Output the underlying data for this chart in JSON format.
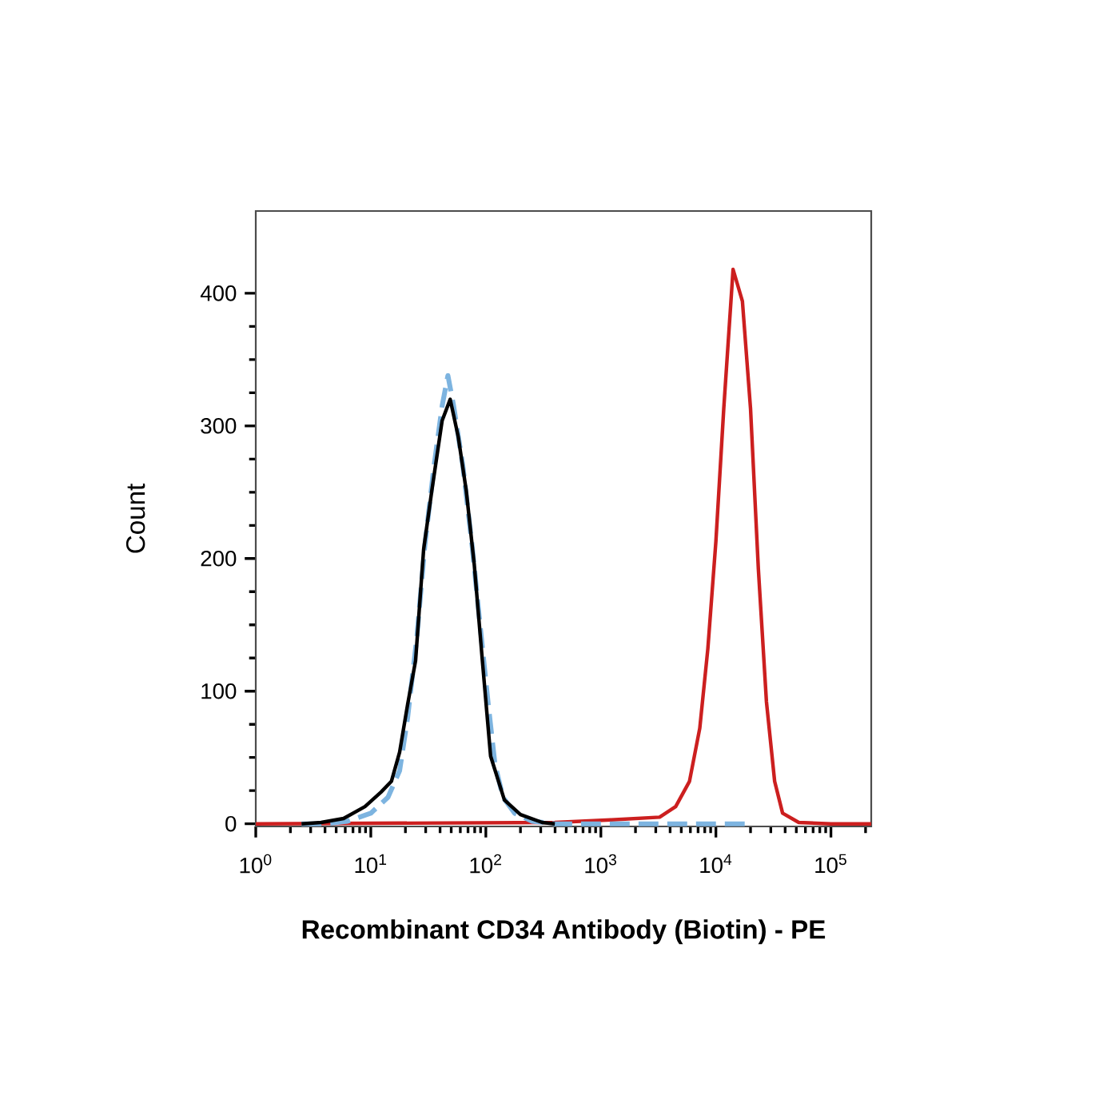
{
  "chart_data": {
    "type": "line",
    "xlabel": "Recombinant CD34 Antibody (Biotin) - PE",
    "ylabel": "Count",
    "log": "x",
    "xlim": [
      1,
      224000
    ],
    "ylim": [
      -2,
      462
    ],
    "xticks": [
      {
        "value": 1,
        "label": "10$^{0}$"
      },
      {
        "value": 10,
        "label": "10$^{1}$"
      },
      {
        "value": 100,
        "label": "10$^{2}$"
      },
      {
        "value": 1000,
        "label": "10$^{3}$"
      },
      {
        "value": 10000,
        "label": "10$^{4}$"
      },
      {
        "value": 100000,
        "label": "10$^{5}$"
      }
    ],
    "yticks": [
      0,
      100,
      200,
      300,
      400
    ],
    "grid": false,
    "marker": "none",
    "series": [
      {
        "color": "#cc1f1f",
        "line_style": "solid",
        "x": [
          1,
          398,
          1230,
          3240,
          4470,
          5890,
          7240,
          8510,
          10000,
          11700,
          14100,
          17000,
          20000,
          23400,
          27500,
          32400,
          38000,
          52500,
          100000,
          224000
        ],
        "values": [
          0,
          1,
          3,
          5,
          13,
          32,
          72,
          132,
          213,
          313,
          418,
          394,
          313,
          192,
          92,
          32,
          8,
          1,
          0,
          0
        ]
      },
      {
        "color": "#7db4e0",
        "line_style": "dashed",
        "x": [
          2.5,
          4,
          6.3,
          10,
          14.1,
          17.8,
          20.9,
          25.1,
          29.5,
          35.5,
          41.7,
          46.8,
          52.5,
          63.1,
          75.9,
          89.1,
          105,
          120,
          141,
          178,
          251,
          398,
          20000
        ],
        "values": [
          0,
          0,
          2,
          8,
          20,
          40,
          80,
          140,
          210,
          270,
          315,
          338,
          315,
          270,
          210,
          150,
          90,
          45,
          20,
          8,
          2,
          0,
          0
        ]
      },
      {
        "color": "#000000",
        "line_style": "solid",
        "x": [
          2.5,
          3.7,
          5.8,
          8.9,
          12.3,
          15.1,
          17.8,
          20.9,
          24.5,
          28.8,
          33.9,
          41.7,
          49,
          57.5,
          67.6,
          79.4,
          93.3,
          110,
          145,
          200,
          309,
          398
        ],
        "values": [
          0,
          1,
          4,
          13,
          24,
          32,
          54,
          90,
          123,
          207,
          251,
          304,
          320,
          292,
          251,
          195,
          123,
          51,
          18,
          7,
          1,
          0
        ]
      }
    ]
  }
}
